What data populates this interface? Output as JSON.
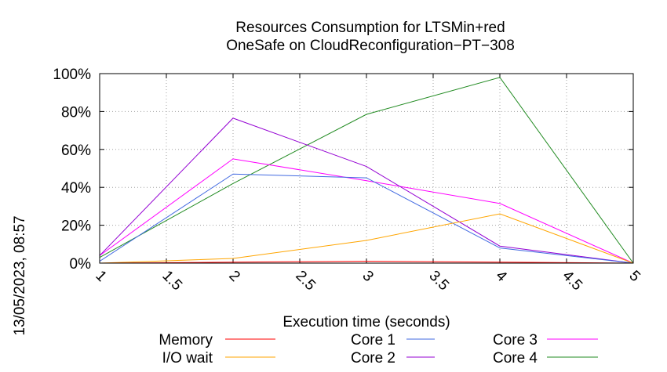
{
  "chart_data": {
    "type": "line",
    "title": [
      "Resources Consumption for LTSMin+red",
      "OneSafe on CloudReconfiguration−PT−308"
    ],
    "xlabel": "Execution time (seconds)",
    "ylabel": "",
    "timestamp": "13/05/2023, 08:57",
    "xlim": [
      1,
      5
    ],
    "ylim": [
      0,
      100
    ],
    "x_ticks": [
      "1",
      "1.5",
      "2",
      "2.5",
      "3",
      "3.5",
      "4",
      "4.5",
      "5"
    ],
    "y_ticks": [
      "0%",
      "20%",
      "40%",
      "60%",
      "80%",
      "100%"
    ],
    "grid": true,
    "legend_position": "bottom",
    "x": [
      1,
      2,
      3,
      4,
      5
    ],
    "series": [
      {
        "name": "Memory",
        "color": "#ff0000",
        "values": [
          0,
          0.5,
          1,
          0.5,
          0
        ]
      },
      {
        "name": "I/O wait",
        "color": "#ffa500",
        "values": [
          0,
          2.5,
          12,
          26,
          0
        ]
      },
      {
        "name": "Core 1",
        "color": "#4169e1",
        "values": [
          1,
          47,
          45,
          8,
          0
        ]
      },
      {
        "name": "Core 2",
        "color": "#9400d3",
        "values": [
          4,
          76.5,
          51,
          9,
          0
        ]
      },
      {
        "name": "Core 3",
        "color": "#ff00ff",
        "values": [
          4,
          55,
          43.5,
          31.5,
          0
        ]
      },
      {
        "name": "Core 4",
        "color": "#228b22",
        "values": [
          3,
          42,
          78.5,
          98,
          0
        ]
      }
    ]
  }
}
